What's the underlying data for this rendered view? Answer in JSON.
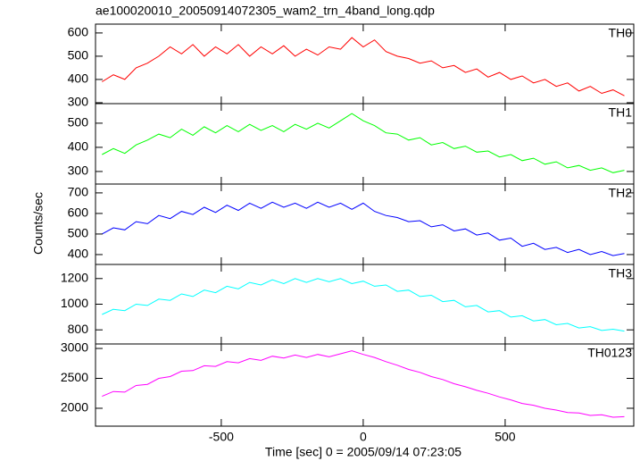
{
  "chart_data": {
    "type": "line",
    "title": "ae100020010_20050914072305_wam2_trn_4band_long.qdp",
    "xlabel": "Time [sec] 0 = 2005/09/14 07:23:05",
    "ylabel": "Counts/sec",
    "xlim": [
      -943,
      953
    ],
    "xticks": [
      -500,
      0,
      500
    ],
    "x": [
      -920,
      -880,
      -840,
      -800,
      -760,
      -720,
      -680,
      -640,
      -600,
      -560,
      -520,
      -480,
      -440,
      -400,
      -360,
      -320,
      -280,
      -240,
      -200,
      -160,
      -120,
      -80,
      -40,
      0,
      40,
      80,
      120,
      160,
      200,
      240,
      280,
      320,
      360,
      400,
      440,
      480,
      520,
      560,
      600,
      640,
      680,
      720,
      760,
      800,
      840,
      880,
      920
    ],
    "panels": [
      {
        "name": "TH0",
        "color": "#ff0000",
        "ylim": [
          296,
          638
        ],
        "yticks": [
          300,
          400,
          500,
          600
        ],
        "values": [
          390,
          420,
          400,
          450,
          470,
          500,
          540,
          510,
          550,
          500,
          540,
          510,
          550,
          500,
          540,
          510,
          545,
          500,
          530,
          505,
          540,
          530,
          580,
          540,
          570,
          520,
          500,
          490,
          470,
          480,
          450,
          460,
          430,
          445,
          410,
          430,
          400,
          415,
          385,
          400,
          370,
          385,
          350,
          370,
          340,
          355,
          330
        ]
      },
      {
        "name": "TH1",
        "color": "#00ff00",
        "ylim": [
          248,
          581
        ],
        "yticks": [
          300,
          400,
          500
        ],
        "values": [
          370,
          395,
          375,
          410,
          430,
          455,
          440,
          475,
          450,
          485,
          460,
          490,
          465,
          495,
          470,
          490,
          465,
          495,
          475,
          500,
          480,
          510,
          540,
          510,
          490,
          460,
          455,
          430,
          440,
          410,
          420,
          395,
          405,
          380,
          385,
          360,
          370,
          345,
          355,
          330,
          340,
          315,
          325,
          305,
          315,
          295,
          305
        ]
      },
      {
        "name": "TH2",
        "color": "#0000ff",
        "ylim": [
          352,
          743
        ],
        "yticks": [
          400,
          500,
          600,
          700
        ],
        "values": [
          500,
          530,
          520,
          560,
          550,
          590,
          575,
          610,
          595,
          630,
          605,
          640,
          615,
          650,
          625,
          655,
          630,
          650,
          625,
          655,
          630,
          650,
          620,
          650,
          610,
          590,
          580,
          560,
          565,
          535,
          545,
          515,
          525,
          495,
          505,
          470,
          480,
          440,
          455,
          425,
          435,
          410,
          425,
          400,
          415,
          395,
          405
        ]
      },
      {
        "name": "TH3",
        "color": "#00ffff",
        "ylim": [
          690,
          1310
        ],
        "yticks": [
          800,
          1000,
          1200
        ],
        "values": [
          920,
          960,
          950,
          1000,
          990,
          1040,
          1030,
          1080,
          1060,
          1110,
          1090,
          1140,
          1120,
          1170,
          1150,
          1190,
          1160,
          1200,
          1170,
          1200,
          1175,
          1200,
          1160,
          1180,
          1140,
          1150,
          1100,
          1110,
          1060,
          1070,
          1020,
          1030,
          980,
          990,
          940,
          950,
          900,
          910,
          870,
          880,
          840,
          850,
          815,
          825,
          795,
          805,
          790
        ]
      },
      {
        "name": "TH0123",
        "color": "#ff00ff",
        "ylim": [
          1701,
          3075
        ],
        "yticks": [
          2000,
          2500,
          3000
        ],
        "values": [
          2200,
          2280,
          2270,
          2380,
          2400,
          2500,
          2530,
          2620,
          2630,
          2710,
          2700,
          2780,
          2760,
          2830,
          2800,
          2870,
          2840,
          2890,
          2850,
          2900,
          2860,
          2910,
          2960,
          2900,
          2850,
          2780,
          2720,
          2650,
          2600,
          2530,
          2480,
          2410,
          2360,
          2300,
          2250,
          2190,
          2140,
          2080,
          2050,
          2000,
          1970,
          1930,
          1920,
          1880,
          1890,
          1850,
          1860
        ]
      }
    ]
  }
}
